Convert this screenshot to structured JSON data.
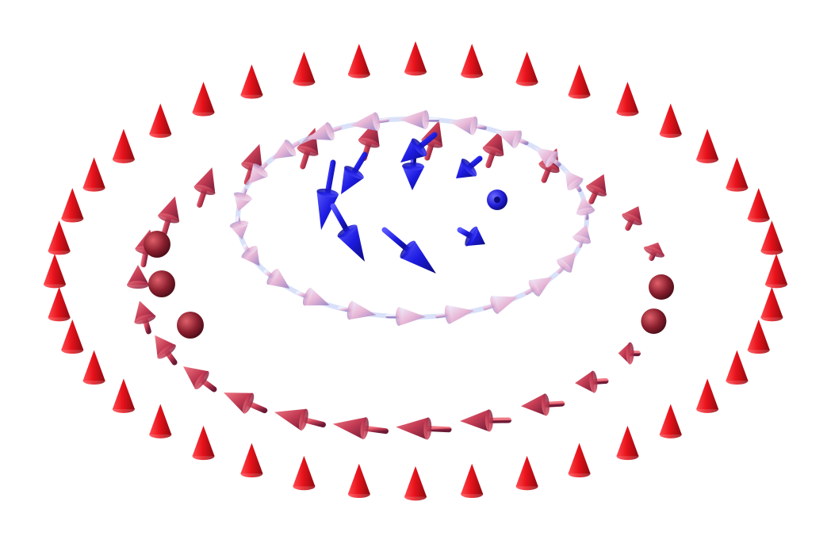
{
  "figure": {
    "subject": "skyrmion-spin-texture",
    "background_color": "#ffffff"
  },
  "colors": {
    "spin_up": "#e8121b",
    "spin_up_dark": "#9a0c12",
    "spin_inplane": "#b98fb4",
    "spin_inplane_light": "#f3d6ea",
    "spin_down": "#1d1be0",
    "spin_down_dark": "#10108a",
    "domain_wall_light": "#c9d4f7"
  },
  "rings": [
    {
      "name": "outer-ring",
      "spin_state": "up",
      "arrow_count": 40
    },
    {
      "name": "middle-ring",
      "spin_state": "tilted",
      "arrow_count": 26
    },
    {
      "name": "domain-wall-ring",
      "spin_state": "in-plane",
      "arrow_count": 22
    },
    {
      "name": "core",
      "spin_state": "down",
      "arrow_count": 9
    }
  ]
}
